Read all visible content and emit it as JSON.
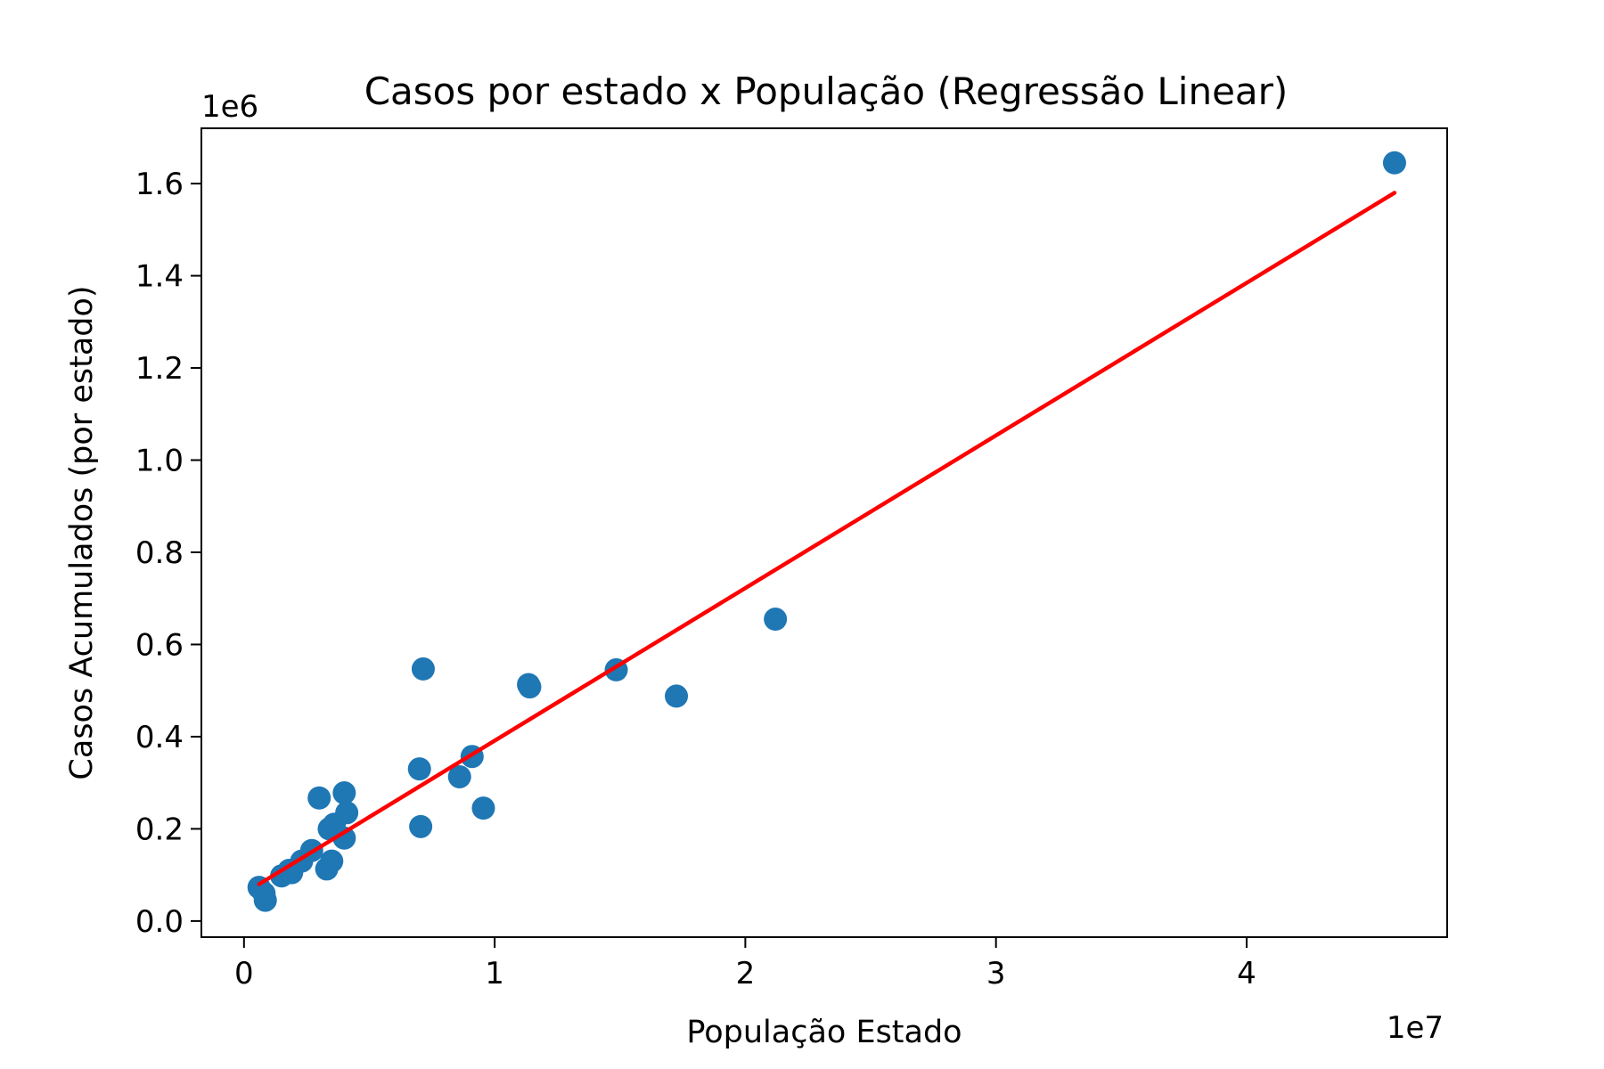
{
  "chart_data": {
    "type": "scatter",
    "title": "Casos por estado x População (Regressão Linear)",
    "xlabel": "População Estado",
    "ylabel": "Casos Acumulados (por estado)",
    "x_offset_label": "1e7",
    "y_offset_label": "1e6",
    "x_scale": 10000000,
    "y_scale": 1000000,
    "xlim": [
      -0.17,
      4.8
    ],
    "ylim": [
      -0.035,
      1.72
    ],
    "x_ticks": [
      0,
      1,
      2,
      3,
      4
    ],
    "x_tick_labels": [
      "0",
      "1",
      "2",
      "3",
      "4"
    ],
    "y_ticks": [
      0.0,
      0.2,
      0.4,
      0.6,
      0.8,
      1.0,
      1.2,
      1.4,
      1.6
    ],
    "y_tick_labels": [
      "0.0",
      "0.2",
      "0.4",
      "0.6",
      "0.8",
      "1.0",
      "1.2",
      "1.4",
      "1.6"
    ],
    "grid": false,
    "series": [
      {
        "type": "scatter",
        "color": "#1f77b4",
        "points": [
          [
            0.06,
            0.073
          ],
          [
            0.085,
            0.045
          ],
          [
            0.08,
            0.06
          ],
          [
            0.15,
            0.098
          ],
          [
            0.18,
            0.11
          ],
          [
            0.19,
            0.105
          ],
          [
            0.23,
            0.13
          ],
          [
            0.27,
            0.153
          ],
          [
            0.3,
            0.267
          ],
          [
            0.33,
            0.113
          ],
          [
            0.34,
            0.2
          ],
          [
            0.35,
            0.13
          ],
          [
            0.36,
            0.21
          ],
          [
            0.4,
            0.278
          ],
          [
            0.41,
            0.235
          ],
          [
            0.4,
            0.18
          ],
          [
            0.7,
            0.33
          ],
          [
            0.705,
            0.205
          ],
          [
            0.715,
            0.547
          ],
          [
            0.86,
            0.313
          ],
          [
            0.91,
            0.357
          ],
          [
            0.955,
            0.245
          ],
          [
            1.135,
            0.513
          ],
          [
            1.14,
            0.508
          ],
          [
            1.485,
            0.545
          ],
          [
            1.725,
            0.488
          ],
          [
            2.12,
            0.655
          ],
          [
            4.59,
            1.645
          ]
        ]
      },
      {
        "type": "line",
        "color": "#ff0000",
        "x": [
          0.06,
          4.59
        ],
        "y": [
          0.08,
          1.58
        ]
      }
    ]
  }
}
